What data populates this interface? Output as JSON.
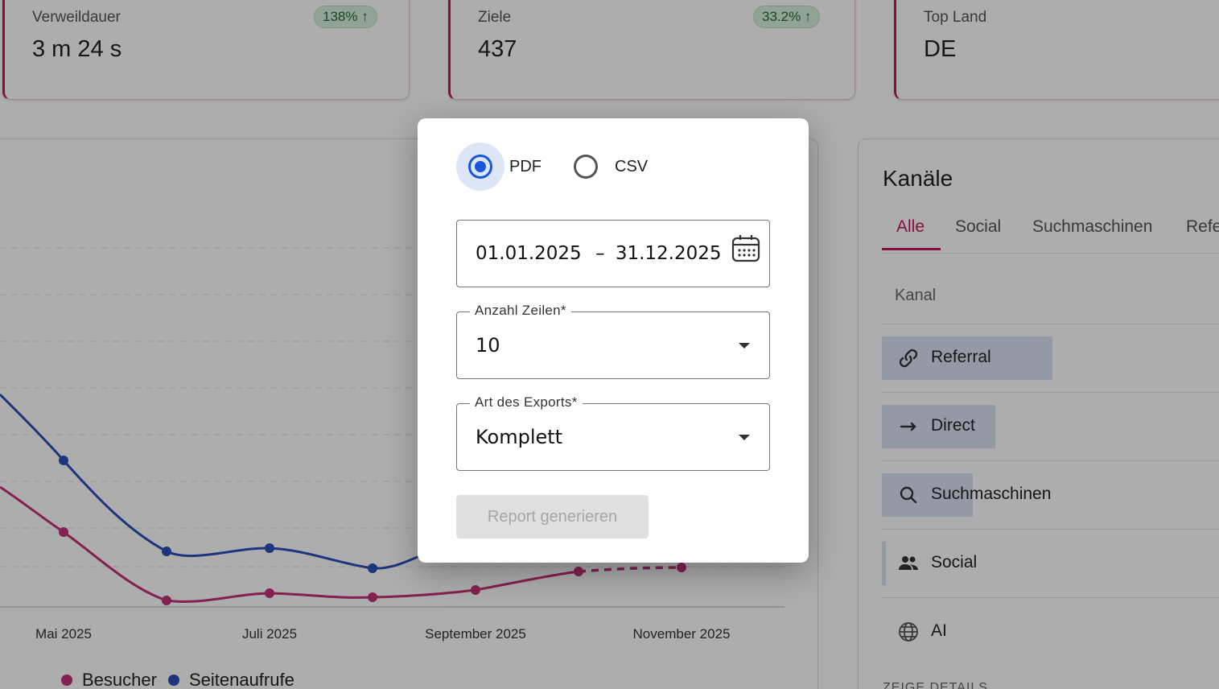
{
  "stats": [
    {
      "title": "Verweildauer",
      "value": "3 m 24 s",
      "change": "138% ↑"
    },
    {
      "title": "Ziele",
      "value": "437",
      "change": "33.2% ↑"
    },
    {
      "title": "Top Land",
      "value": "DE",
      "change": ""
    }
  ],
  "chart_data": {
    "type": "line",
    "x_ticks": [
      "Mai 2025",
      "Juli 2025",
      "September 2025",
      "November 2025"
    ],
    "series": [
      {
        "name": "Besucher",
        "color": "#c2307a"
      },
      {
        "name": "Seitenaufrufe",
        "color": "#2c4fb8"
      }
    ],
    "legend": "bottom-left"
  },
  "channels": {
    "title": "Kanäle",
    "tabs": [
      "Alle",
      "Social",
      "Suchmaschinen",
      "Refe"
    ],
    "column_header": "Kanal",
    "rows": [
      {
        "label": "Referral",
        "icon": "link-icon",
        "share": 0.49
      },
      {
        "label": "Direct",
        "icon": "arrow-right-icon",
        "share": 0.33
      },
      {
        "label": "Suchmaschinen",
        "icon": "search-icon",
        "share": 0.26
      },
      {
        "label": "Social",
        "icon": "people-icon",
        "share": 0.01
      },
      {
        "label": "AI",
        "icon": "globe-icon",
        "share": 0
      }
    ],
    "details_label": "ZEIGE DETAILS"
  },
  "export_dialog": {
    "format_options": [
      {
        "label": "PDF",
        "selected": true
      },
      {
        "label": "CSV",
        "selected": false
      }
    ],
    "date_range": {
      "start": "01.01.2025",
      "separator": "–",
      "end": "31.12.2025"
    },
    "rows_field": {
      "label": "Anzahl Zeilen*",
      "value": "10"
    },
    "type_field": {
      "label": "Art des Exports*",
      "value": "Komplett"
    },
    "generate_button": "Report generieren"
  },
  "colors": {
    "accent": "#c2185b",
    "primary": "#1a56db",
    "badge_green": "#1b6e35"
  }
}
